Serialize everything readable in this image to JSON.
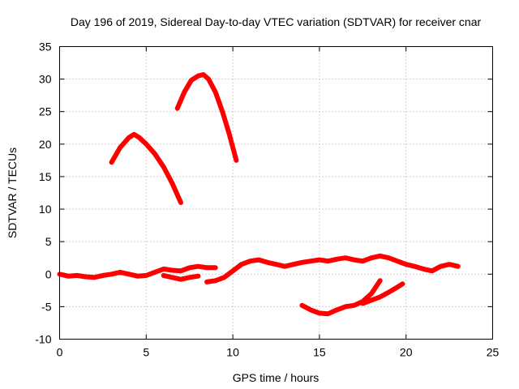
{
  "chart_data": {
    "type": "line",
    "title": "Day 196 of 2019, Sidereal Day-to-day VTEC variation (SDTVAR) for receiver cnar",
    "xlabel": "GPS time / hours",
    "ylabel": "SDTVAR / TECUs",
    "xlim": [
      0,
      25
    ],
    "ylim": [
      -10,
      35
    ],
    "xticks": [
      0,
      5,
      10,
      15,
      20,
      25
    ],
    "yticks": [
      -10,
      -5,
      0,
      5,
      10,
      15,
      20,
      25,
      30,
      35
    ],
    "grid": true,
    "legend": "none",
    "color": "#ff0000",
    "series": [
      {
        "name": "arc-1",
        "x": [
          3.0,
          3.5,
          4.0,
          4.3,
          4.6,
          5.0,
          5.5,
          6.0,
          6.5,
          7.0
        ],
        "y": [
          17.2,
          19.5,
          21.0,
          21.5,
          21.0,
          20.0,
          18.5,
          16.5,
          14.0,
          11.0
        ]
      },
      {
        "name": "arc-2",
        "x": [
          6.8,
          7.2,
          7.6,
          8.0,
          8.3,
          8.6,
          9.0,
          9.4,
          9.8,
          10.2
        ],
        "y": [
          25.5,
          28.0,
          29.8,
          30.5,
          30.7,
          30.0,
          28.0,
          25.0,
          21.5,
          17.5
        ]
      },
      {
        "name": "baseline-1",
        "x": [
          0,
          0.5,
          1.0,
          1.5,
          2.0,
          2.5,
          3.0,
          3.5,
          4.0,
          4.5,
          5.0,
          5.5,
          6.0,
          6.5,
          7.0,
          7.5,
          8.0,
          8.5,
          9.0
        ],
        "y": [
          0.0,
          -0.3,
          -0.2,
          -0.4,
          -0.5,
          -0.2,
          0.0,
          0.3,
          0.0,
          -0.3,
          -0.2,
          0.3,
          0.8,
          0.6,
          0.5,
          1.0,
          1.2,
          1.0,
          1.0
        ]
      },
      {
        "name": "baseline-2",
        "x": [
          6.0,
          6.5,
          7.0,
          7.5,
          8.0
        ],
        "y": [
          -0.2,
          -0.5,
          -0.8,
          -0.5,
          -0.3
        ]
      },
      {
        "name": "baseline-3",
        "x": [
          8.5,
          9.0,
          9.5,
          10.0,
          10.5,
          11.0,
          11.5,
          12.0,
          12.5,
          13.0,
          13.5,
          14.0,
          14.5,
          15.0,
          15.5,
          16.0,
          16.5,
          17.0,
          17.5,
          18.0,
          18.5,
          19.0,
          19.5,
          20.0,
          20.5,
          21.0,
          21.5,
          22.0,
          22.5,
          23.0
        ],
        "y": [
          -1.2,
          -1.0,
          -0.5,
          0.5,
          1.5,
          2.0,
          2.2,
          1.8,
          1.5,
          1.2,
          1.5,
          1.8,
          2.0,
          2.2,
          2.0,
          2.3,
          2.5,
          2.2,
          2.0,
          2.5,
          2.8,
          2.5,
          2.0,
          1.5,
          1.2,
          0.8,
          0.5,
          1.2,
          1.5,
          1.2
        ]
      },
      {
        "name": "arc-3",
        "x": [
          14.0,
          14.5,
          15.0,
          15.5,
          16.0,
          16.5,
          17.0,
          17.5,
          18.0,
          18.5
        ],
        "y": [
          -4.8,
          -5.5,
          -6.0,
          -6.1,
          -5.5,
          -5.0,
          -4.8,
          -4.2,
          -3.0,
          -1.0
        ]
      },
      {
        "name": "arc-4",
        "x": [
          17.5,
          18.0,
          18.5,
          19.0,
          19.5,
          19.8
        ],
        "y": [
          -4.5,
          -4.0,
          -3.5,
          -2.8,
          -2.0,
          -1.5
        ]
      }
    ]
  }
}
